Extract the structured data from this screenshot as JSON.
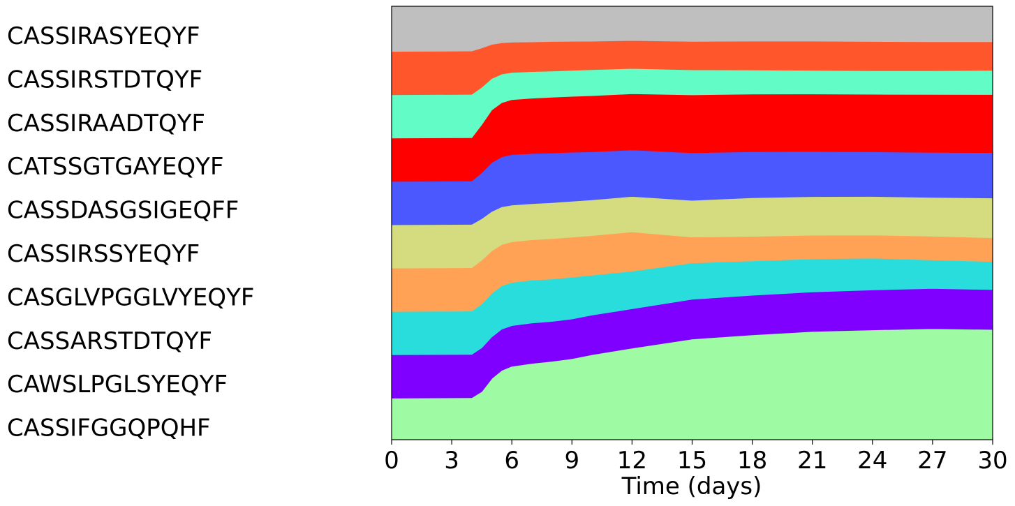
{
  "chart_data": {
    "type": "area",
    "title": "",
    "xlabel": "Time (days)",
    "ylabel": "",
    "xlim": [
      0,
      30
    ],
    "xticks": [
      0,
      3,
      6,
      9,
      12,
      15,
      18,
      21,
      24,
      27,
      30
    ],
    "ylim": [
      0,
      1
    ],
    "grid": false,
    "legend": "left, stacked labels",
    "x": [
      0,
      4,
      4.5,
      5,
      5.5,
      6,
      7,
      8,
      9,
      10,
      12,
      15,
      18,
      21,
      24,
      27,
      30
    ],
    "series": [
      {
        "name": "CASSIFGGQPQHF",
        "color": "#9efaa3",
        "values": [
          0.096,
          0.097,
          0.11,
          0.14,
          0.16,
          0.17,
          0.178,
          0.183,
          0.19,
          0.2,
          0.217,
          0.233,
          0.244,
          0.252,
          0.256,
          0.257,
          0.255
        ]
      },
      {
        "name": "CAWSLPGLSYEQYF",
        "color": "#8000ff",
        "values": [
          0.1,
          0.1,
          0.1,
          0.095,
          0.095,
          0.094,
          0.094,
          0.093,
          0.093,
          0.093,
          0.093,
          0.092,
          0.092,
          0.092,
          0.093,
          0.093,
          0.092
        ]
      },
      {
        "name": "CASSARSTDTQYF",
        "color": "#2adddd",
        "values": [
          0.1,
          0.1,
          0.1,
          0.1,
          0.1,
          0.1,
          0.1,
          0.099,
          0.098,
          0.094,
          0.089,
          0.084,
          0.08,
          0.077,
          0.074,
          0.066,
          0.065
        ]
      },
      {
        "name": "CASGLVPGGLVYEQYF",
        "color": "#ffa256",
        "values": [
          0.1,
          0.1,
          0.1,
          0.097,
          0.095,
          0.094,
          0.094,
          0.094,
          0.094,
          0.093,
          0.093,
          0.06,
          0.057,
          0.055,
          0.054,
          0.055,
          0.055
        ]
      },
      {
        "name": "CASSIRSSYEQYF",
        "color": "#d4dc7f",
        "values": [
          0.1,
          0.1,
          0.095,
          0.09,
          0.087,
          0.085,
          0.084,
          0.084,
          0.084,
          0.084,
          0.084,
          0.085,
          0.09,
          0.09,
          0.09,
          0.09,
          0.092
        ]
      },
      {
        "name": "CASSDASGSIGEQFF",
        "color": "#4a58fd",
        "values": [
          0.1,
          0.1,
          0.105,
          0.112,
          0.115,
          0.117,
          0.117,
          0.116,
          0.115,
          0.113,
          0.11,
          0.11,
          0.107,
          0.105,
          0.104,
          0.104,
          0.105
        ]
      },
      {
        "name": "CATSSGTGAYEQYF",
        "color": "#ff0000",
        "values": [
          0.1,
          0.1,
          0.11,
          0.12,
          0.125,
          0.127,
          0.129,
          0.13,
          0.131,
          0.132,
          0.133,
          0.134,
          0.134,
          0.134,
          0.134,
          0.134,
          0.134
        ]
      },
      {
        "name": "CASSIRAADTQYF",
        "color": "#62fdc6",
        "values": [
          0.1,
          0.1,
          0.085,
          0.072,
          0.066,
          0.063,
          0.062,
          0.061,
          0.061,
          0.061,
          0.06,
          0.058,
          0.056,
          0.055,
          0.055,
          0.055,
          0.056
        ]
      },
      {
        "name": "CASSIRSTDTQYF",
        "color": "#ff572b",
        "values": [
          0.1,
          0.1,
          0.09,
          0.078,
          0.072,
          0.07,
          0.069,
          0.069,
          0.068,
          0.067,
          0.066,
          0.066,
          0.067,
          0.068,
          0.068,
          0.067,
          0.066
        ]
      },
      {
        "name": "CASSIRASYEQYF",
        "color": "#bfbfbf",
        "values": [
          0.104,
          0.103,
          0.095,
          0.087,
          0.084,
          0.083,
          0.083,
          0.082,
          0.082,
          0.082,
          0.081,
          0.081,
          0.081,
          0.081,
          0.082,
          0.082,
          0.082
        ]
      }
    ],
    "legend_order_top_to_bottom": [
      "CASSIRASYEQYF",
      "CASSIRSTDTQYF",
      "CASSIRAADTQYF",
      "CATSSGTGAYEQYF",
      "CASSDASGSIGEQFF",
      "CASSIRSSYEQYF",
      "CASGLVPGGLVYEQYF",
      "CASSARSTDTQYF",
      "CAWSLPGLSYEQYF",
      "CASSIFGGQPQHF"
    ]
  }
}
